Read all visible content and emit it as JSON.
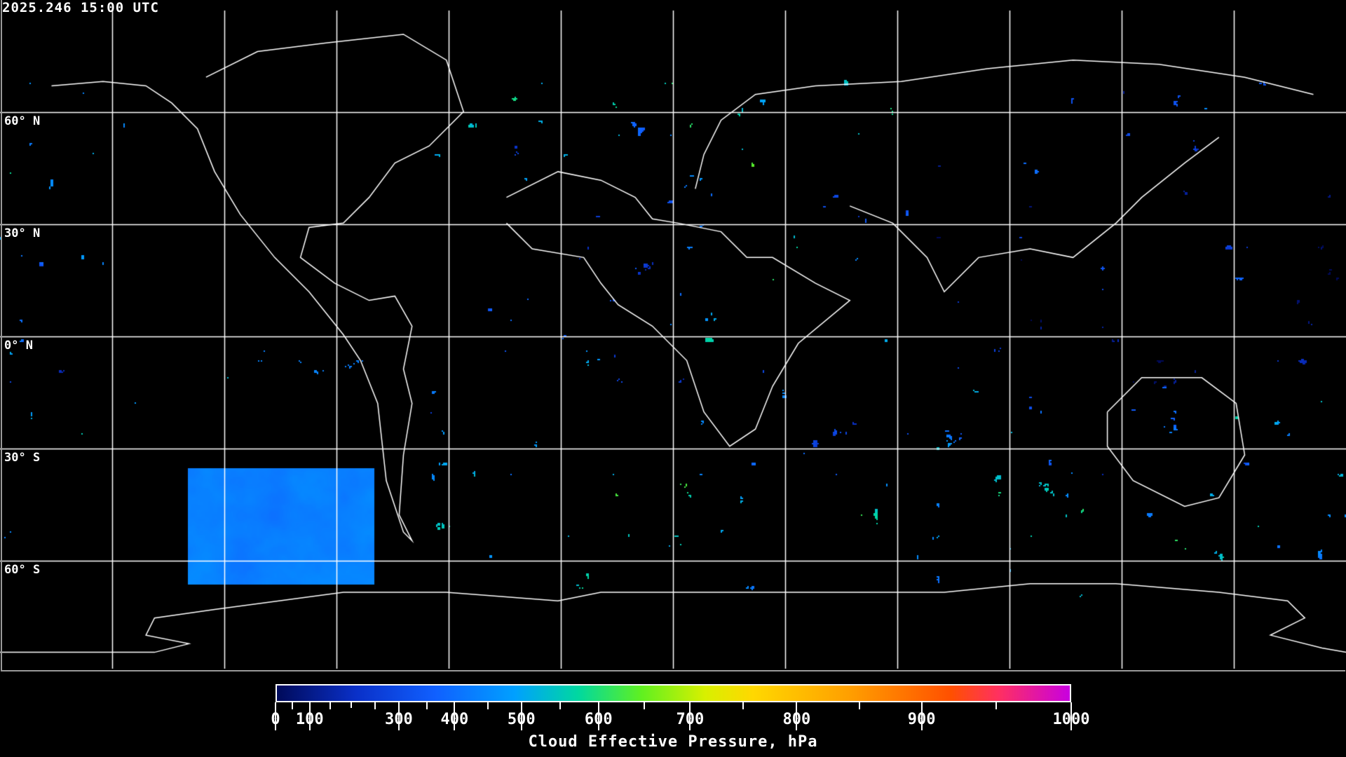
{
  "timestamp": "2025.246 15:00 UTC",
  "map": {
    "projection": "equirectangular",
    "grid_spacing_deg": 30,
    "lat_labels": [
      "60° N",
      "30° N",
      "0° N",
      "30° S",
      "60° S"
    ],
    "coastline_color": "#ffffff",
    "gridline_color": "#ffffff",
    "no_data_color": "#000000"
  },
  "colorbar": {
    "title": "Cloud Effective Pressure, hPa",
    "min": 0,
    "max": 1000,
    "tick_labels": [
      "0",
      "100",
      "300",
      "400",
      "500",
      "600",
      "700",
      "800",
      "900",
      "1000"
    ],
    "colors": [
      "#000a5a",
      "#0a30c8",
      "#1060ff",
      "#00a0ff",
      "#00d8a0",
      "#60f020",
      "#d8f000",
      "#ffd800",
      "#ffa000",
      "#ff5000",
      "#ff3060",
      "#c800e0"
    ]
  }
}
